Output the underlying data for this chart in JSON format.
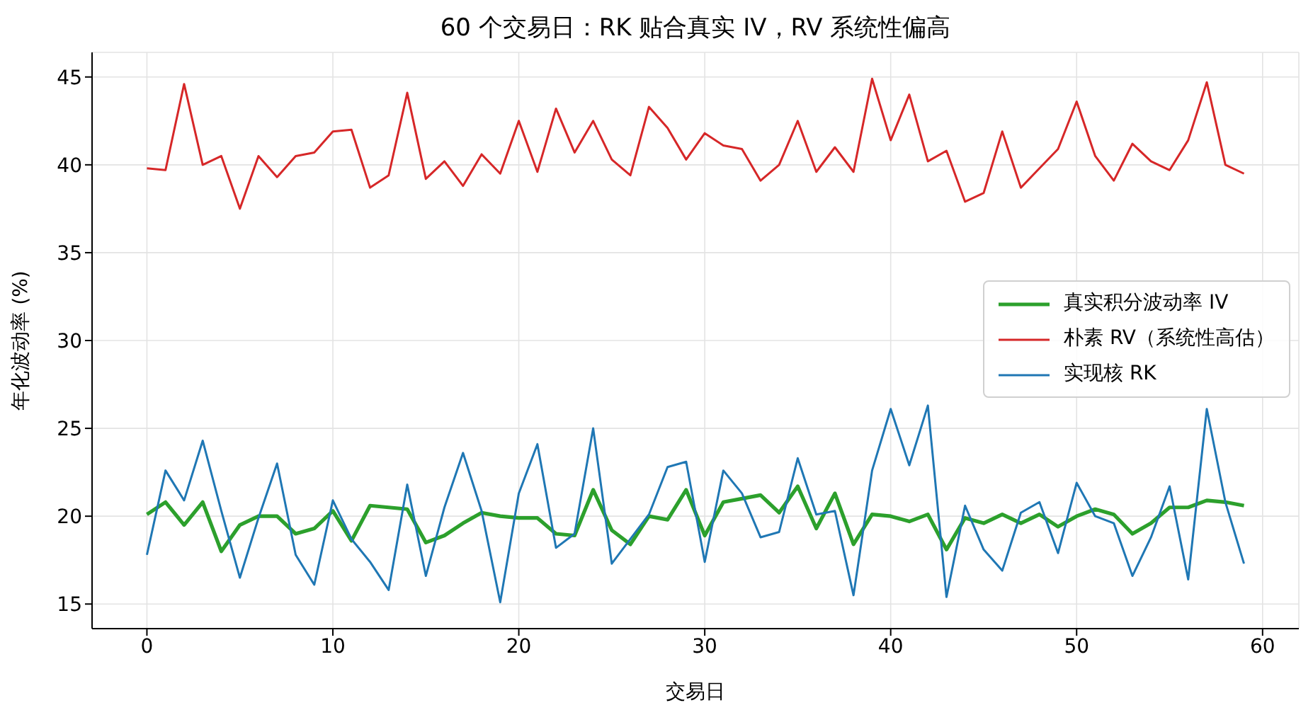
{
  "chart_data": {
    "type": "line",
    "title": "60 个交易日：RK 贴合真实 IV，RV 系统性偏高",
    "xlabel": "交易日",
    "ylabel": "年化波动率 (%)",
    "x": [
      0,
      1,
      2,
      3,
      4,
      5,
      6,
      7,
      8,
      9,
      10,
      11,
      12,
      13,
      14,
      15,
      16,
      17,
      18,
      19,
      20,
      21,
      22,
      23,
      24,
      25,
      26,
      27,
      28,
      29,
      30,
      31,
      32,
      33,
      34,
      35,
      36,
      37,
      38,
      39,
      40,
      41,
      42,
      43,
      44,
      45,
      46,
      47,
      48,
      49,
      50,
      51,
      52,
      53,
      54,
      55,
      56,
      57,
      58,
      59
    ],
    "series": [
      {
        "name": "真实积分波动率 IV",
        "color": "#2ca02c",
        "values": [
          20.1,
          20.8,
          19.5,
          20.8,
          18.0,
          19.5,
          20.0,
          20.0,
          19.0,
          19.3,
          20.3,
          18.6,
          20.6,
          20.5,
          20.4,
          18.5,
          18.9,
          19.6,
          20.2,
          20.0,
          19.9,
          19.9,
          19.0,
          18.9,
          21.5,
          19.2,
          18.4,
          20.0,
          19.8,
          21.5,
          18.9,
          20.8,
          21.0,
          21.2,
          20.2,
          21.7,
          19.3,
          21.3,
          18.4,
          20.1,
          20.0,
          19.7,
          20.1,
          18.1,
          19.9,
          19.6,
          20.1,
          19.6,
          20.1,
          19.4,
          20.0,
          20.4,
          20.1,
          19.0,
          19.6,
          20.5,
          20.5,
          20.9,
          20.8,
          20.6
        ]
      },
      {
        "name": "朴素 RV（系统性高估）",
        "color": "#d62728",
        "values": [
          39.8,
          39.7,
          44.6,
          40.0,
          40.5,
          37.5,
          40.5,
          39.3,
          40.5,
          40.7,
          41.9,
          42.0,
          38.7,
          39.4,
          44.1,
          39.2,
          40.2,
          38.8,
          40.6,
          39.5,
          42.5,
          39.6,
          43.2,
          40.7,
          42.5,
          40.3,
          39.4,
          43.3,
          42.1,
          40.3,
          41.8,
          41.1,
          40.9,
          39.1,
          40.0,
          42.5,
          39.6,
          41.0,
          39.6,
          44.9,
          41.4,
          44.0,
          40.2,
          40.8,
          37.9,
          38.4,
          41.9,
          38.7,
          39.8,
          40.9,
          43.6,
          40.5,
          39.1,
          41.2,
          40.2,
          39.7,
          41.4,
          44.7,
          40.0,
          39.5
        ]
      },
      {
        "name": "实现核 RK",
        "color": "#1f77b4",
        "values": [
          17.8,
          22.6,
          20.9,
          24.3,
          20.3,
          16.5,
          19.9,
          23.0,
          17.8,
          16.1,
          20.9,
          18.7,
          17.4,
          15.8,
          21.8,
          16.6,
          20.5,
          23.6,
          20.3,
          15.1,
          21.3,
          24.1,
          18.2,
          19.0,
          25.0,
          17.3,
          18.7,
          20.1,
          22.8,
          23.1,
          17.4,
          22.6,
          21.3,
          18.8,
          19.1,
          23.3,
          20.1,
          20.3,
          15.5,
          22.6,
          26.1,
          22.9,
          26.3,
          15.4,
          20.6,
          18.1,
          16.9,
          20.2,
          20.8,
          17.9,
          21.9,
          20.0,
          19.6,
          16.6,
          18.8,
          21.7,
          16.4,
          26.1,
          20.8,
          17.3
        ]
      }
    ],
    "xlim": [
      -2.95,
      61.95
    ],
    "xticks": [
      0,
      10,
      20,
      30,
      40,
      50,
      60
    ],
    "ylim": [
      13.6,
      46.4
    ],
    "yticks": [
      15,
      20,
      25,
      30,
      35,
      40,
      45
    ],
    "grid": true,
    "legend": "right",
    "marker": "none",
    "line_style": "solid"
  }
}
